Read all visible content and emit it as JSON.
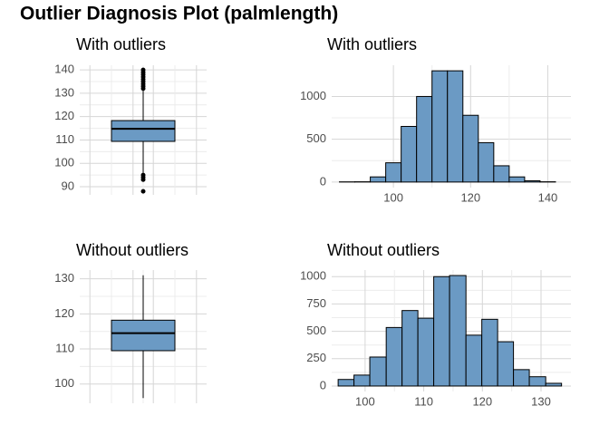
{
  "title": "Outlier Diagnosis Plot (palmlength)",
  "chart_data": [
    {
      "type": "box",
      "title": "With outliers",
      "color": "#6b9ac4",
      "grid": true,
      "ylim": [
        86.5,
        142
      ],
      "yticks": [
        90,
        100,
        110,
        120,
        130,
        140
      ],
      "whisker_low": 96,
      "q1": 109.4,
      "median": 114.8,
      "q3": 118.3,
      "whisker_high": 131.6,
      "outliers": [
        132,
        133,
        134,
        135,
        136,
        137,
        138,
        139,
        140,
        95,
        94,
        93,
        88
      ]
    },
    {
      "type": "histogram",
      "title": "With outliers",
      "color": "#6b9ac4",
      "grid": true,
      "bins": [
        86,
        90,
        94,
        98,
        102,
        106,
        110,
        114,
        118,
        122,
        126,
        130,
        134,
        138,
        142
      ],
      "values": [
        2,
        3,
        60,
        225,
        650,
        1000,
        1300,
        1300,
        780,
        460,
        190,
        60,
        15,
        3
      ],
      "xlim": [
        84,
        146
      ],
      "xticks": [
        100,
        120,
        140
      ],
      "ylim": [
        -65,
        1365
      ],
      "yticks": [
        0,
        500,
        1000
      ]
    },
    {
      "type": "box",
      "title": "Without outliers",
      "color": "#6b9ac4",
      "grid": true,
      "ylim": [
        94.5,
        132.5
      ],
      "yticks": [
        100,
        110,
        120,
        130
      ],
      "whisker_low": 96,
      "q1": 109.5,
      "median": 114.5,
      "q3": 118.2,
      "whisker_high": 131,
      "outliers": []
    },
    {
      "type": "histogram",
      "title": "Without outliers",
      "color": "#6b9ac4",
      "grid": true,
      "bins": [
        95.4,
        98.1,
        100.8,
        103.6,
        106.3,
        109.0,
        111.7,
        114.4,
        117.2,
        119.9,
        122.6,
        125.3,
        128.0,
        130.8,
        133.5
      ],
      "values": [
        60,
        100,
        265,
        535,
        690,
        620,
        1000,
        1010,
        465,
        610,
        405,
        150,
        85,
        25
      ],
      "xlim": [
        94.3,
        135.1
      ],
      "xticks": [
        100,
        110,
        120,
        130
      ],
      "ylim": [
        -50,
        1060
      ],
      "yticks": [
        0,
        250,
        500,
        750,
        1000
      ]
    }
  ]
}
